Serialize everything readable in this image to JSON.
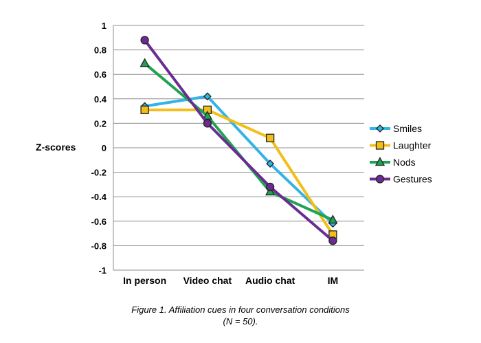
{
  "chart_data": {
    "type": "line",
    "categories": [
      "In person",
      "Video chat",
      "Audio chat",
      "IM"
    ],
    "ylabel": "Z-scores",
    "xlabel": "",
    "ylim": [
      -1,
      1
    ],
    "yticks": [
      "1",
      "0.8",
      "0.6",
      "0.4",
      "0.2",
      "0",
      "-0.2",
      "-0.4",
      "-0.6",
      "-0.8",
      "-1"
    ],
    "grid": "horizontal",
    "legend_position": "right",
    "series": [
      {
        "name": "Smiles",
        "values": [
          0.34,
          0.42,
          -0.13,
          -0.62
        ],
        "color": "#33B3E6",
        "marker": "diamond"
      },
      {
        "name": "Laughter",
        "values": [
          0.31,
          0.31,
          0.08,
          -0.71
        ],
        "color": "#F2BE1A",
        "marker": "square"
      },
      {
        "name": "Nods",
        "values": [
          0.69,
          0.26,
          -0.36,
          -0.59
        ],
        "color": "#1FA352",
        "marker": "triangle"
      },
      {
        "name": "Gestures",
        "values": [
          0.88,
          0.2,
          -0.32,
          -0.76
        ],
        "color": "#6B2C91",
        "marker": "circle"
      }
    ]
  },
  "caption": {
    "line1": "Figure 1. Affiliation cues in four conversation conditions",
    "line2": "(N = 50)."
  }
}
